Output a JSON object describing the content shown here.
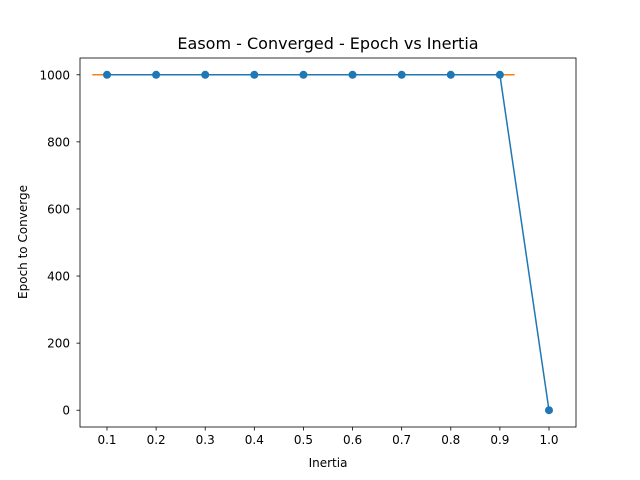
{
  "chart_data": {
    "type": "line",
    "title": "Easom - Converged - Epoch vs Inertia",
    "xlabel": "Inertia",
    "ylabel": "Epoch to Converge",
    "x": [
      0.1,
      0.2,
      0.3,
      0.4,
      0.5,
      0.6,
      0.7,
      0.8,
      0.9,
      1.0
    ],
    "xticks": [
      "0.1",
      "0.2",
      "0.3",
      "0.4",
      "0.5",
      "0.6",
      "0.7",
      "0.8",
      "0.9",
      "1.0"
    ],
    "yticks": [
      0,
      200,
      400,
      600,
      800,
      1000
    ],
    "xlim": [
      0.045,
      1.055
    ],
    "ylim": [
      -50,
      1050
    ],
    "grid": false,
    "series": [
      {
        "values": [
          1000,
          1000,
          1000,
          1000,
          1000,
          1000,
          1000,
          1000,
          1000,
          0
        ],
        "color": "#1f77b4",
        "marker": "circle"
      }
    ],
    "error_bars": {
      "color": "#ff7f0e",
      "half_width": [
        0.03,
        0.03,
        0.03,
        0.03,
        0.03,
        0.03,
        0.03,
        0.03,
        0.03,
        0.0
      ]
    }
  }
}
